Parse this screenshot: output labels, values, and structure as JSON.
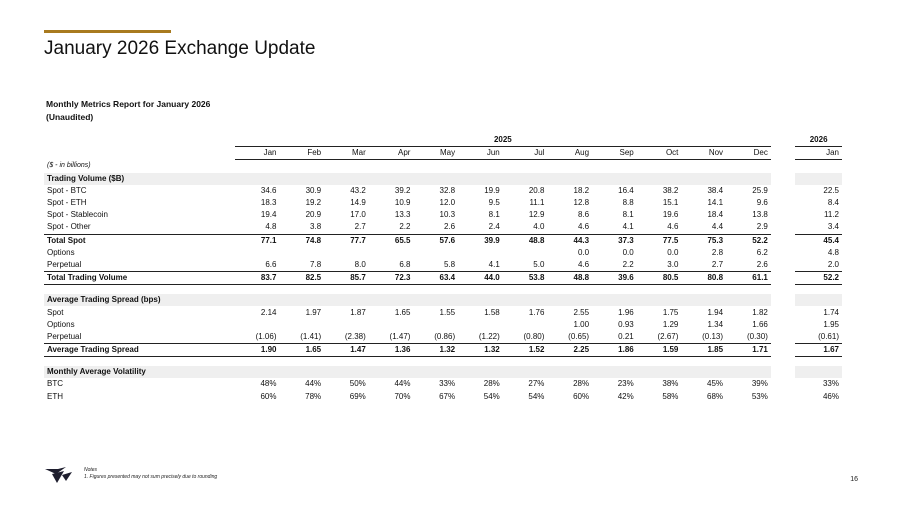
{
  "slide": {
    "title": "January 2026 Exchange Update",
    "report_title": "Monthly Metrics Report for January 2026",
    "report_subtitle": "(Unaudited)",
    "page_number": "16"
  },
  "table": {
    "year_left": "2025",
    "year_right": "2026",
    "months": [
      "Jan",
      "Feb",
      "Mar",
      "Apr",
      "May",
      "Jun",
      "Jul",
      "Aug",
      "Sep",
      "Oct",
      "Nov",
      "Dec"
    ],
    "month_right": "Jan",
    "units_label": "($ - in billions)",
    "sections": [
      {
        "title": "Trading Volume ($B)",
        "rows": [
          {
            "kind": "data",
            "label": "Spot - BTC",
            "values": [
              "34.6",
              "30.9",
              "43.2",
              "39.2",
              "32.8",
              "19.9",
              "20.8",
              "18.2",
              "16.4",
              "38.2",
              "38.4",
              "25.9"
            ],
            "latest": "22.5"
          },
          {
            "kind": "data",
            "label": "Spot - ETH",
            "values": [
              "18.3",
              "19.2",
              "14.9",
              "10.9",
              "12.0",
              "9.5",
              "11.1",
              "12.8",
              "8.8",
              "15.1",
              "14.1",
              "9.6"
            ],
            "latest": "8.4"
          },
          {
            "kind": "data",
            "label": "Spot - Stablecoin",
            "values": [
              "19.4",
              "20.9",
              "17.0",
              "13.3",
              "10.3",
              "8.1",
              "12.9",
              "8.6",
              "8.1",
              "19.6",
              "18.4",
              "13.8"
            ],
            "latest": "11.2"
          },
          {
            "kind": "data",
            "label": "Spot - Other",
            "values": [
              "4.8",
              "3.8",
              "2.7",
              "2.2",
              "2.6",
              "2.4",
              "4.0",
              "4.6",
              "4.1",
              "4.6",
              "4.4",
              "2.9"
            ],
            "latest": "3.4"
          },
          {
            "kind": "total",
            "label": "Total Spot",
            "values": [
              "77.1",
              "74.8",
              "77.7",
              "65.5",
              "57.6",
              "39.9",
              "48.8",
              "44.3",
              "37.3",
              "77.5",
              "75.3",
              "52.2"
            ],
            "latest": "45.4"
          },
          {
            "kind": "data",
            "label": "Options",
            "values": [
              "",
              "",
              "",
              "",
              "",
              "",
              "",
              "0.0",
              "0.0",
              "0.0",
              "2.8",
              "6.2"
            ],
            "latest": "4.8"
          },
          {
            "kind": "data",
            "label": "Perpetual",
            "values": [
              "6.6",
              "7.8",
              "8.0",
              "6.8",
              "5.8",
              "4.1",
              "5.0",
              "4.6",
              "2.2",
              "3.0",
              "2.7",
              "2.6"
            ],
            "latest": "2.0"
          },
          {
            "kind": "grand",
            "label": "Total Trading Volume",
            "values": [
              "83.7",
              "82.5",
              "85.7",
              "72.3",
              "63.4",
              "44.0",
              "53.8",
              "48.8",
              "39.6",
              "80.5",
              "80.8",
              "61.1"
            ],
            "latest": "52.2"
          }
        ]
      },
      {
        "title": "Average Trading Spread (bps)",
        "rows": [
          {
            "kind": "data",
            "label": "Spot",
            "values": [
              "2.14",
              "1.97",
              "1.87",
              "1.65",
              "1.55",
              "1.58",
              "1.76",
              "2.55",
              "1.96",
              "1.75",
              "1.94",
              "1.82"
            ],
            "latest": "1.74"
          },
          {
            "kind": "data",
            "label": "Options",
            "values": [
              "",
              "",
              "",
              "",
              "",
              "",
              "",
              "1.00",
              "0.93",
              "1.29",
              "1.34",
              "1.66"
            ],
            "latest": "1.95"
          },
          {
            "kind": "data",
            "label": "Perpetual",
            "values": [
              "(1.06)",
              "(1.41)",
              "(2.38)",
              "(1.47)",
              "(0.86)",
              "(1.22)",
              "(0.80)",
              "(0.65)",
              "0.21",
              "(2.67)",
              "(0.13)",
              "(0.30)"
            ],
            "latest": "(0.61)"
          },
          {
            "kind": "grand",
            "label": "Average Trading Spread",
            "values": [
              "1.90",
              "1.65",
              "1.47",
              "1.36",
              "1.32",
              "1.32",
              "1.52",
              "2.25",
              "1.86",
              "1.59",
              "1.85",
              "1.71"
            ],
            "latest": "1.67"
          }
        ]
      },
      {
        "title": "Monthly Average Volatility",
        "rows": [
          {
            "kind": "data",
            "label": "BTC",
            "values": [
              "48%",
              "44%",
              "50%",
              "44%",
              "33%",
              "28%",
              "27%",
              "28%",
              "23%",
              "38%",
              "45%",
              "39%"
            ],
            "latest": "33%"
          },
          {
            "kind": "data",
            "label": "ETH",
            "values": [
              "60%",
              "78%",
              "69%",
              "70%",
              "67%",
              "54%",
              "54%",
              "60%",
              "42%",
              "58%",
              "68%",
              "53%"
            ],
            "latest": "46%"
          }
        ]
      }
    ]
  },
  "notes": {
    "heading": "Notes",
    "items": [
      "1.    Figures presented may not sum precisely due to rounding"
    ]
  }
}
